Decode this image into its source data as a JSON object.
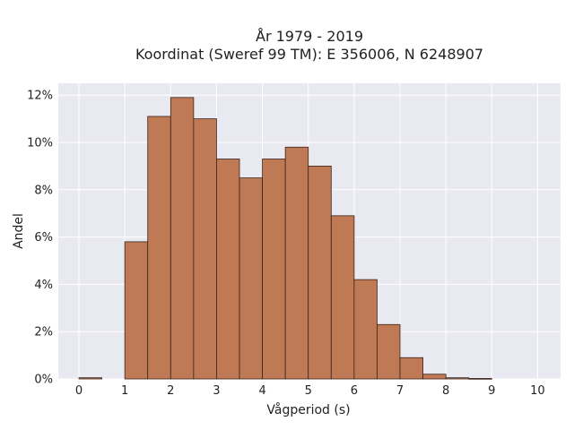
{
  "chart_data": {
    "type": "bar",
    "title_line1": "År 1979 - 2019",
    "title_line2": "Koordinat (Sweref 99 TM): E 356006, N 6248907",
    "xlabel": "Vågperiod (s)",
    "ylabel": "Andel",
    "bin_width": 0.5,
    "bin_starts": [
      0,
      0.5,
      1,
      1.5,
      2,
      2.5,
      3,
      3.5,
      4,
      4.5,
      5,
      5.5,
      6,
      6.5,
      7,
      7.5,
      8,
      8.5,
      9,
      9.5
    ],
    "values": [
      0.05,
      0,
      5.8,
      11.1,
      11.9,
      11.0,
      9.3,
      8.5,
      9.3,
      9.8,
      9.0,
      6.9,
      4.2,
      2.3,
      0.9,
      0.2,
      0.05,
      0.02,
      0,
      0
    ],
    "value_unit": "%",
    "xlim": [
      -0.45,
      10.5
    ],
    "ylim": [
      0,
      12.5
    ],
    "x_ticks": [
      "0",
      "1",
      "2",
      "3",
      "4",
      "5",
      "6",
      "7",
      "8",
      "9",
      "10"
    ],
    "y_ticks": [
      "0%",
      "2%",
      "4%",
      "6%",
      "8%",
      "10%",
      "12%"
    ],
    "grid": true,
    "bar_color": "#bf7a55",
    "bar_edge_color": "#3a2418",
    "plot_background": "#e9e9f1"
  }
}
